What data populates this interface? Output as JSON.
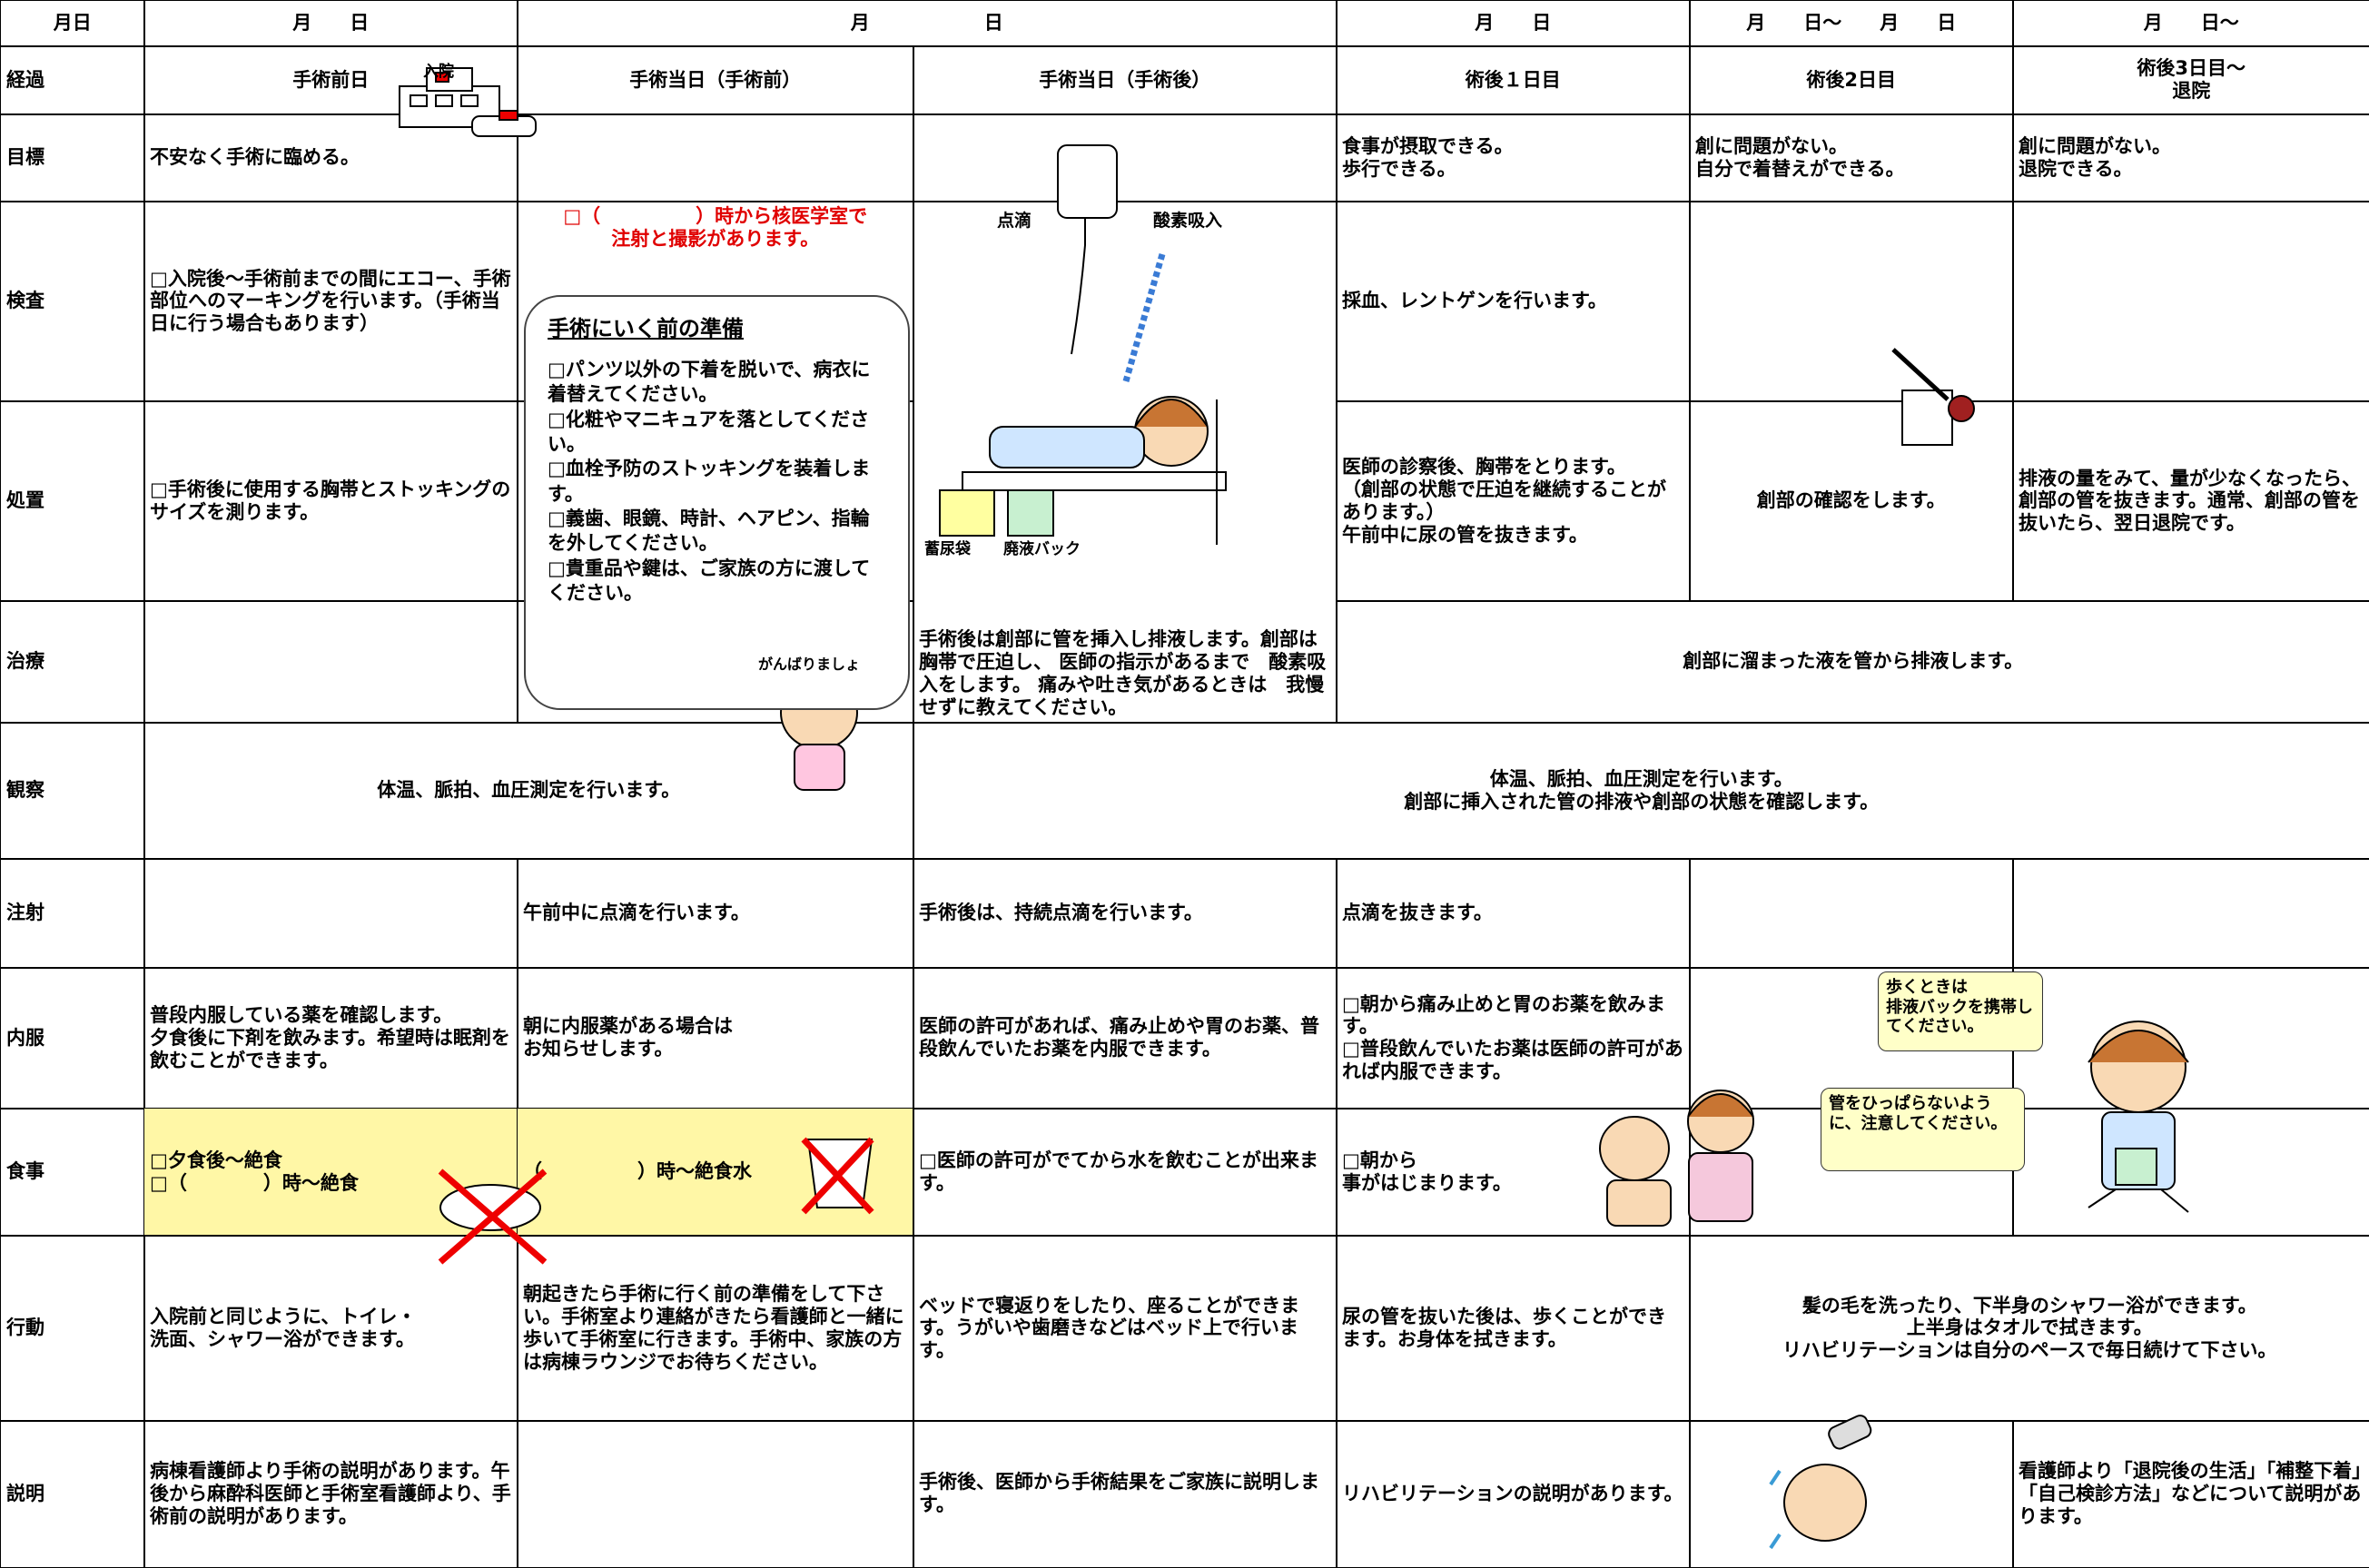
{
  "header": {
    "label": "月日",
    "dates": [
      "月　　日",
      "月　　　　　　日",
      "月　　日",
      "月　　日～　　月　　日",
      "月　　日～"
    ]
  },
  "rows": [
    {
      "label": "経過",
      "cells": [
        "手術前日",
        "手術当日（手術前）",
        "手術当日（手術後）",
        "術後１日目",
        "術後2日目",
        "術後3日目～\n退院"
      ]
    },
    {
      "label": "目標",
      "cells": [
        "不安なく手術に臨める。",
        "食事が摂取できる。\n歩行できる。",
        "創に問題がない。\n自分で着替えができる。",
        "創に問題がない。\n退院できる。"
      ]
    },
    {
      "label": "検査",
      "cells": [
        "□入院後～手術前までの間にエコー、手術部位へのマーキングを行います。（手術当日に行う場合もあります）",
        "□（　　　　　）時から核医学室で\n注射と撮影があります。",
        "採血、レントゲンを行います。"
      ]
    },
    {
      "label": "処置",
      "cells": [
        "□手術後に使用する胸帯とストッキングのサイズを測ります。",
        "医師の診察後、胸帯をとります。\n（創部の状態で圧迫を継続することがあります。）\n午前中に尿の管を抜きます。",
        "創部の確認をします。",
        "排液の量をみて、量が少なくなったら、創部の管を抜きます。通常、創部の管を抜いたら、翌日退院です。"
      ]
    },
    {
      "label": "治療",
      "cells": [
        "手術後は創部に管を挿入し排液します。創部は胸帯で圧迫し、 医師の指示があるまで　酸素吸入をします。 痛みや吐き気があるときは　我慢せずに教えてください。",
        "創部に溜まった液を管から排液します。"
      ]
    },
    {
      "label": "観察",
      "cells": [
        "体温、脈拍、血圧測定を行います。",
        "体温、脈拍、血圧測定を行います。\n創部に挿入された管の排液や創部の状態を確認します。"
      ]
    },
    {
      "label": "注射",
      "cells": [
        "午前中に点滴を行います。",
        "手術後は、持続点滴を行います。",
        "点滴を抜きます。"
      ]
    },
    {
      "label": "内服",
      "cells": [
        "普段内服している薬を確認します。\n夕食後に下剤を飲みます。希望時は眠剤を飲むことができます。",
        "朝に内服薬がある場合は\nお知らせします。",
        "医師の許可があれば、痛み止めや胃のお薬、普段飲んでいたお薬を内服できます。",
        "□朝から痛み止めと胃のお薬を飲みます。\n□普段飲んでいたお薬は医師の許可があれば内服できます。"
      ]
    },
    {
      "label": "食事",
      "cells": [
        "□夕食後～絶食\n□（　　　　）時～絶食",
        "（　　　　　）時～絶食水",
        "□医師の許可がでてから水を飲むことが出来ます。",
        "□朝から\n事がはじまります。"
      ]
    },
    {
      "label": "行動",
      "cells": [
        "入院前と同じように、トイレ・\n洗面、シャワー浴ができます。",
        "朝起きたら手術に行く前の準備をして下さい。手術室より連絡がきたら看護師と一緒に歩いて手術室に行きます。手術中、家族の方は病棟ラウンジでお待ちください。",
        "ベッドで寝返りをしたり、座ることができます。うがいや歯磨きなどはベッド上で行います。",
        "尿の管を抜いた後は、歩くことができます。お身体を拭きます。",
        "髪の毛を洗ったり、下半身のシャワー浴ができます。\n上半身はタオルで拭きます。\nリハビリテーションは自分のペースで毎日続けて下さい。"
      ]
    },
    {
      "label": "説明",
      "cells": [
        "病棟看護師より手術の説明があります。午後から麻酔科医師と手術室看護師より、手術前の説明があります。",
        "手術後、医師から手術結果をご家族に説明します。",
        "リハビリテーションの説明があります。",
        "看護師より「退院後の生活」「補整下着」「自己検診方法」などについて説明があります。"
      ]
    }
  ],
  "prep_box": {
    "title": "手術にいく前の準備",
    "items": [
      "□パンツ以外の下着を脱いで、病衣に着替えてください。",
      "□化粧やマニキュアを落としてください。",
      "□血栓予防のストッキングを装着します。",
      "□義歯、眼鏡、時計、ヘアピン、指輪を外してください。",
      "□貴重品や鍵は、ご家族の方に渡してください。"
    ]
  },
  "illustration_labels": {
    "hospital": "入院",
    "iv": "点滴",
    "oxygen": "酸素吸入",
    "urine_bag": "蓄尿袋",
    "drain_bag": "廃液バック",
    "cheer": "がんばりましょ"
  },
  "speech_bubbles": [
    "歩くときは\n排液バックを携帯してください。",
    "管をひっぱらないように、注意してください。"
  ]
}
